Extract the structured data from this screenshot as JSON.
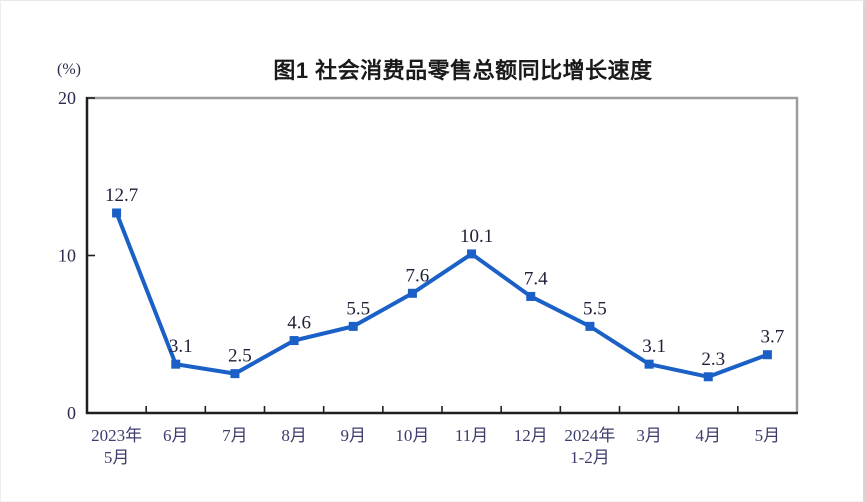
{
  "header": {
    "title": "图1 社会消费品零售总额同比增长速度",
    "y_unit": "(%)"
  },
  "chart_data": {
    "type": "line",
    "title": "图1 社会消费品零售总额同比增长速度",
    "ylabel": "(%)",
    "xlabel": "",
    "categories": [
      "2023年\n5月",
      "6月",
      "7月",
      "8月",
      "9月",
      "10月",
      "11月",
      "12月",
      "2024年\n1-2月",
      "3月",
      "4月",
      "5月"
    ],
    "values": [
      12.7,
      3.1,
      2.5,
      4.6,
      5.5,
      7.6,
      10.1,
      7.4,
      5.5,
      3.1,
      2.3,
      3.7
    ],
    "ylim": [
      0,
      20
    ],
    "yticks": [
      0,
      10,
      20
    ],
    "grid": "off",
    "legend": "none",
    "marker": "square",
    "colors": {
      "line": "#1A60C6",
      "marker": "#1A60C6",
      "data_label": "#20203a",
      "tick_label": "#3c3c6e",
      "y_tick_label": "#2b2b4f",
      "axis": "#1f1f1f",
      "plot_border": "#9e9e9e"
    }
  }
}
